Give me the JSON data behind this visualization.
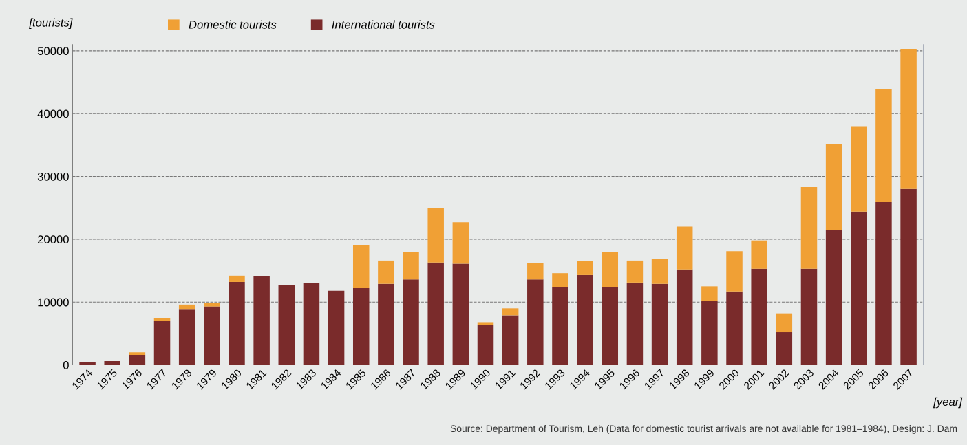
{
  "chart_data": {
    "type": "bar",
    "stacked": true,
    "ylabel": "[tourists]",
    "xlabel": "[year]",
    "categories": [
      "1974",
      "1975",
      "1976",
      "1977",
      "1978",
      "1979",
      "1980",
      "1981",
      "1982",
      "1983",
      "1984",
      "1985",
      "1986",
      "1987",
      "1988",
      "1989",
      "1990",
      "1991",
      "1992",
      "1993",
      "1994",
      "1995",
      "1996",
      "1997",
      "1998",
      "1999",
      "2000",
      "2001",
      "2002",
      "2003",
      "2004",
      "2005",
      "2006",
      "2007"
    ],
    "series": [
      {
        "name": "International tourists",
        "color": "#7a2b2b",
        "values": [
          400,
          600,
          1600,
          7000,
          8900,
          9300,
          13200,
          14100,
          12700,
          13000,
          11800,
          12200,
          12900,
          13600,
          16300,
          16100,
          6300,
          7900,
          13600,
          12400,
          14300,
          12400,
          13100,
          12900,
          15200,
          10200,
          11700,
          15300,
          5200,
          15300,
          21500,
          24400,
          26000,
          28000
        ]
      },
      {
        "name": "Domestic tourists",
        "color": "#f0a035",
        "values": [
          0,
          0,
          400,
          500,
          700,
          600,
          1000,
          null,
          null,
          null,
          null,
          6900,
          3700,
          4400,
          8600,
          6600,
          500,
          1100,
          2600,
          2200,
          2200,
          5600,
          3500,
          4000,
          6800,
          2300,
          6400,
          4500,
          3000,
          13000,
          13600,
          13600,
          17900,
          22300
        ]
      }
    ],
    "ylim": [
      0,
      51000
    ],
    "yticks": [
      0,
      10000,
      20000,
      30000,
      40000,
      50000
    ],
    "grid": "y",
    "legend": "top left",
    "annotations": [
      "Source: Department of Tourism, Leh (Data for domestic tourist arrivals are not available for 1981–1984), Design: J. Dam"
    ]
  }
}
